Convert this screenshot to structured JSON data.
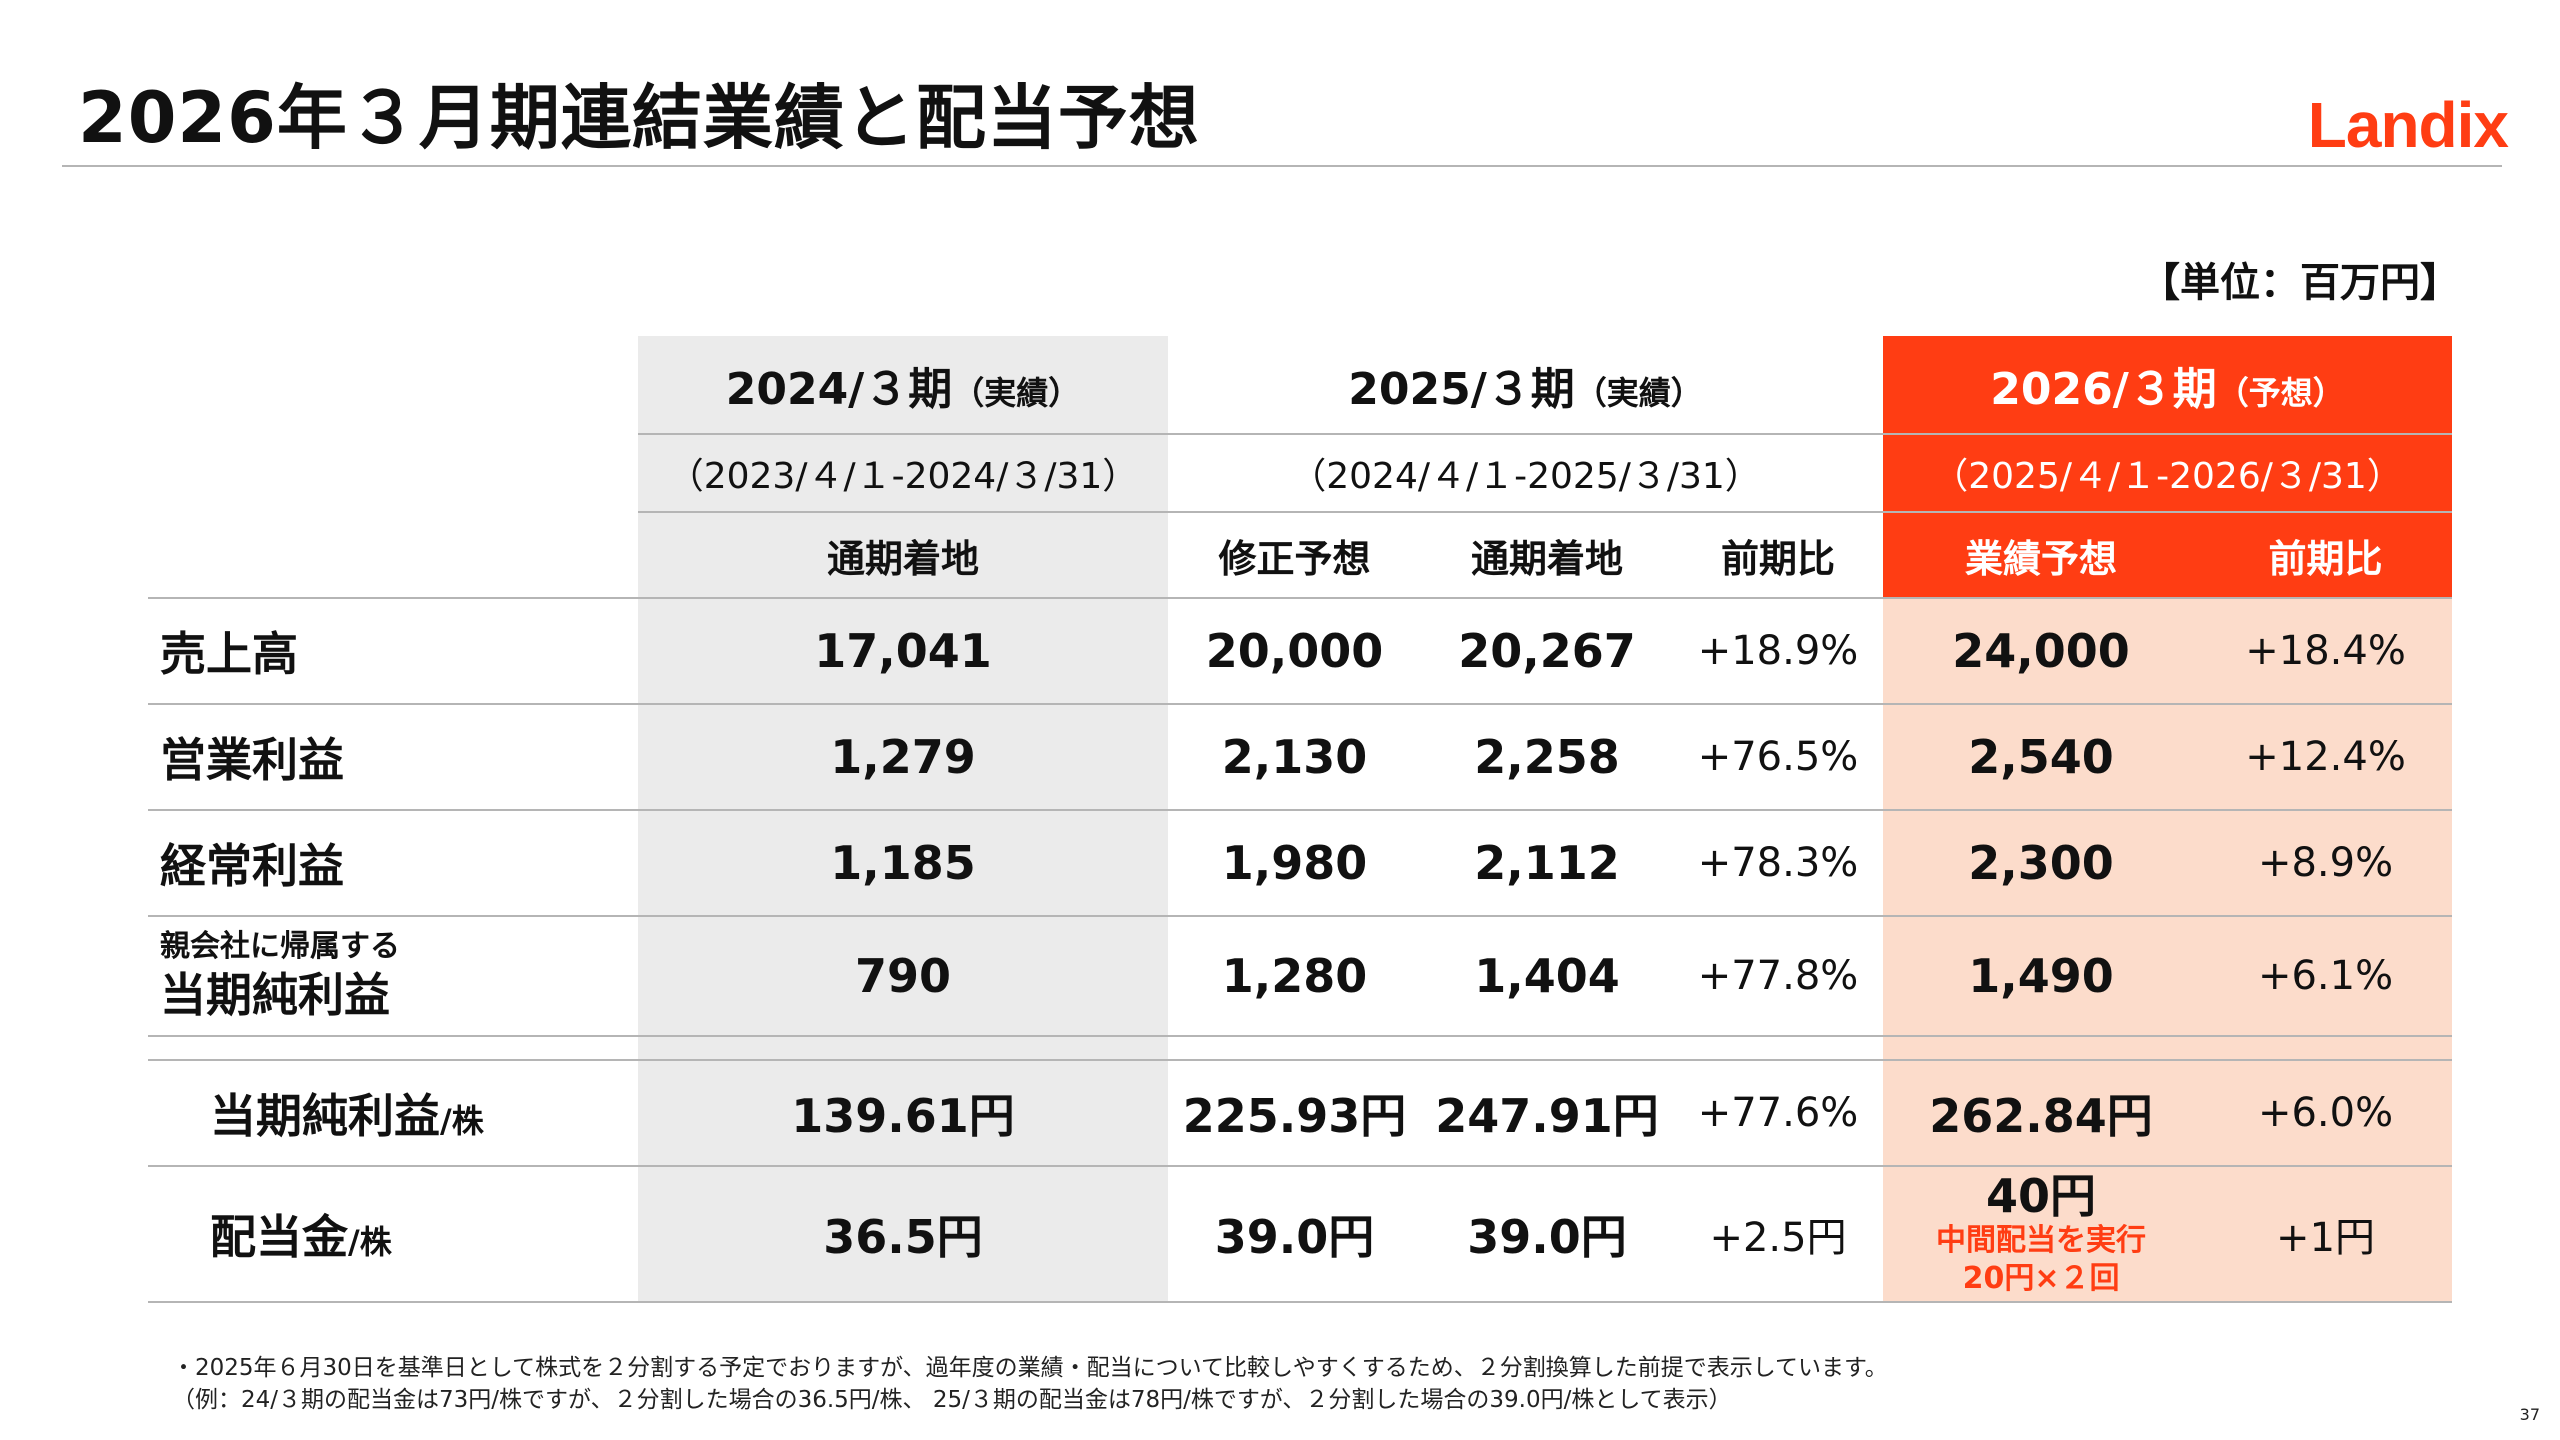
{
  "title": "2026年３月期連結業績と配当予想",
  "logo": "Landix",
  "unit": "【単位：百万円】",
  "header": {
    "period_2024": {
      "label": "2024/３期",
      "note": "（実績）",
      "range": "（2023/４/１-2024/３/31）"
    },
    "period_2025": {
      "label": "2025/３期",
      "note": "（実績）",
      "range": "（2024/４/１-2025/３/31）"
    },
    "period_2026": {
      "label": "2026/３期",
      "note": "（予想）",
      "range": "（2025/４/１-2026/３/31）"
    },
    "columns": [
      "通期着地",
      "修正予想",
      "通期着地",
      "前期比",
      "業績予想",
      "前期比"
    ]
  },
  "rows": [
    {
      "label": "売上高",
      "values": [
        "17,041",
        "20,000",
        "20,267",
        "+18.9%",
        "24,000",
        "+18.4%"
      ]
    },
    {
      "label": "営業利益",
      "values": [
        "1,279",
        "2,130",
        "2,258",
        "+76.5%",
        "2,540",
        "+12.4%"
      ]
    },
    {
      "label": "経常利益",
      "values": [
        "1,185",
        "1,980",
        "2,112",
        "+78.3%",
        "2,300",
        "+8.9%"
      ]
    },
    {
      "label_top": "親会社に帰属する",
      "label": "当期純利益",
      "values": [
        "790",
        "1,280",
        "1,404",
        "+77.8%",
        "1,490",
        "+6.1%"
      ]
    }
  ],
  "per_share_rows": [
    {
      "label": "当期純利益",
      "suffix": "/株",
      "values": [
        "139.61円",
        "225.93円",
        "247.91円",
        "+77.6%",
        "262.84円",
        "+6.0%"
      ]
    },
    {
      "label": "配当金",
      "suffix": "/株",
      "values": [
        "36.5円",
        "39.0円",
        "39.0円",
        "+2.5円",
        "40円",
        "+1円"
      ],
      "forecast_note_1": "中間配当を実行",
      "forecast_note_2": "20円×２回"
    }
  ],
  "notes": [
    "・2025年６月30日を基準日として株式を２分割する予定でおりますが、過年度の業績・配当について比較しやすくするため、２分割換算した前提で表示しています。",
    "（例：24/３期の配当金は73円/株ですが、２分割した場合の36.5円/株、 25/３期の配当金は78円/株ですが、２分割した場合の39.0円/株として表示）"
  ],
  "page_number": "37",
  "colors": {
    "accent": "#ff3d13",
    "forecast_bg": "#fcdccb",
    "actual_bg": "#ebebeb"
  }
}
